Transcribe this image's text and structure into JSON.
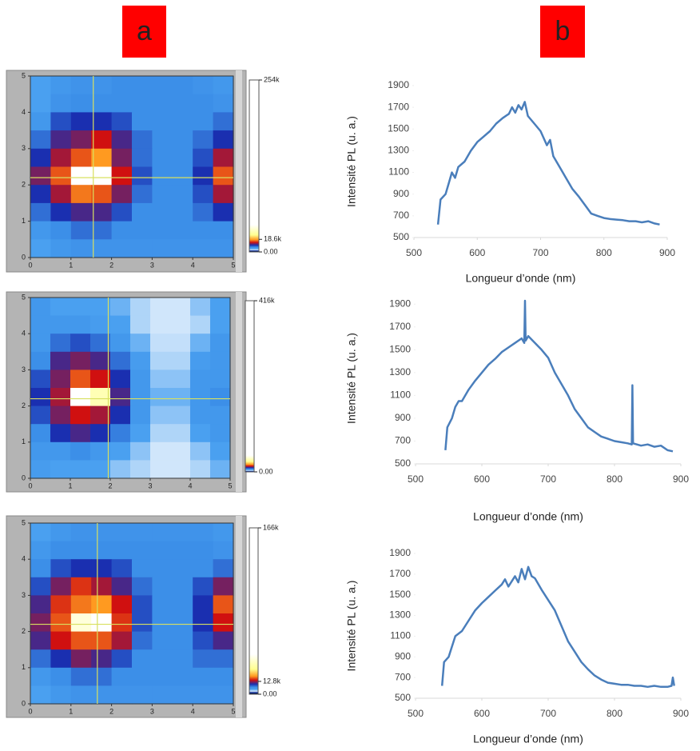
{
  "panel_labels": [
    "a",
    "b"
  ],
  "chart_data": [
    {
      "type": "heatmap",
      "xlim": [
        0,
        5
      ],
      "ylim": [
        0,
        5
      ],
      "xticks": [
        0,
        1,
        2,
        3,
        4,
        5
      ],
      "yticks": [
        0,
        1,
        2,
        3,
        4,
        5
      ],
      "x": [
        0.25,
        0.75,
        1.25,
        1.75,
        2.25,
        2.75,
        3.25,
        3.75,
        4.25,
        4.75
      ],
      "y": [
        4.75,
        4.25,
        3.75,
        3.25,
        2.75,
        2.25,
        1.75,
        1.25,
        0.75,
        0.25
      ],
      "z": [
        [
          5000,
          6000,
          6500,
          6500,
          7000,
          7000,
          7000,
          7000,
          6500,
          6000
        ],
        [
          5000,
          6500,
          7000,
          7000,
          7000,
          7000,
          7000,
          7000,
          7000,
          6500
        ],
        [
          6000,
          9000,
          10000,
          10000,
          9000,
          7000,
          7000,
          7000,
          7000,
          8000
        ],
        [
          8000,
          11000,
          12000,
          14000,
          11000,
          8000,
          7000,
          7000,
          8000,
          10000
        ],
        [
          10000,
          13000,
          16000,
          18000,
          12000,
          8000,
          7000,
          7000,
          9000,
          13000
        ],
        [
          12000,
          16000,
          40000,
          45000,
          14000,
          9000,
          7000,
          7000,
          10000,
          16000
        ],
        [
          10000,
          13000,
          17000,
          16000,
          12000,
          8000,
          7000,
          7000,
          9000,
          13000
        ],
        [
          8000,
          10000,
          11000,
          11000,
          9000,
          7000,
          7000,
          7000,
          8000,
          10000
        ],
        [
          6000,
          7000,
          8000,
          8000,
          7000,
          7000,
          7000,
          7000,
          7000,
          7000
        ],
        [
          5000,
          6000,
          6500,
          6500,
          6500,
          6500,
          6500,
          6500,
          6500,
          6500
        ]
      ],
      "cursor": {
        "x": 1.55,
        "y": 2.2,
        "color": "#d8e060"
      },
      "colorbar": {
        "lim": [
          0,
          254000
        ],
        "ticks": [
          {
            "value": 254000,
            "label": "254k"
          },
          {
            "value": 18600,
            "label": "18.6k"
          },
          {
            "value": 0,
            "label": "0.00"
          }
        ]
      },
      "colormap": [
        {
          "value": 0,
          "color": "#000000"
        },
        {
          "value": 1500,
          "color": "#0a2a9a"
        },
        {
          "value": 3000,
          "color": "#d0e6fb"
        },
        {
          "value": 5000,
          "color": "#4aa0f0"
        },
        {
          "value": 7000,
          "color": "#3c8fe8"
        },
        {
          "value": 10000,
          "color": "#1a2fb0"
        },
        {
          "value": 14000,
          "color": "#d01010"
        },
        {
          "value": 18000,
          "color": "#ff9a20"
        },
        {
          "value": 25000,
          "color": "#ffff90"
        },
        {
          "value": 40000,
          "color": "#ffffff"
        }
      ]
    },
    {
      "type": "heatmap",
      "xlim": [
        0,
        5
      ],
      "ylim": [
        0,
        5
      ],
      "xticks": [
        0,
        1,
        2,
        3,
        4,
        5
      ],
      "yticks": [
        0,
        1,
        2,
        3,
        4,
        5
      ],
      "x": [
        0.25,
        0.75,
        1.25,
        1.75,
        2.25,
        2.75,
        3.25,
        3.75,
        4.25,
        4.75
      ],
      "y": [
        4.75,
        4.25,
        3.75,
        3.25,
        2.75,
        2.25,
        1.75,
        1.25,
        0.75,
        0.25
      ],
      "z": [
        [
          6000,
          5000,
          5000,
          5000,
          4500,
          3500,
          3000,
          3000,
          4000,
          5000
        ],
        [
          6000,
          6000,
          6000,
          5500,
          5000,
          3500,
          3000,
          3000,
          3500,
          5000
        ],
        [
          6000,
          8000,
          9000,
          8000,
          6000,
          4500,
          3200,
          3200,
          4500,
          6000
        ],
        [
          7000,
          11000,
          12000,
          11000,
          8000,
          5500,
          3500,
          3500,
          5500,
          6000
        ],
        [
          9000,
          12000,
          16000,
          14000,
          10000,
          6000,
          4000,
          4000,
          6000,
          6000
        ],
        [
          10000,
          13000,
          42000,
          30000,
          11000,
          6000,
          4500,
          4500,
          6000,
          7000
        ],
        [
          9000,
          12000,
          14000,
          13000,
          10000,
          6000,
          4000,
          4000,
          6000,
          6000
        ],
        [
          7000,
          10000,
          11000,
          10000,
          7500,
          5000,
          3500,
          3500,
          5000,
          6000
        ],
        [
          6000,
          6000,
          7000,
          6000,
          5000,
          4000,
          3000,
          3000,
          4000,
          5000
        ],
        [
          5500,
          5000,
          5000,
          5000,
          4000,
          3500,
          3000,
          3000,
          3500,
          4500
        ]
      ],
      "cursor": {
        "x": 1.95,
        "y": 2.2,
        "color": "#d8e060"
      },
      "colorbar": {
        "lim": [
          0,
          416000
        ],
        "ticks": [
          {
            "value": 416000,
            "label": "416k"
          },
          {
            "value": 0,
            "label": "0.00"
          }
        ]
      },
      "colormap": [
        {
          "value": 0,
          "color": "#000000"
        },
        {
          "value": 1500,
          "color": "#0a2a9a"
        },
        {
          "value": 3000,
          "color": "#d0e6fb"
        },
        {
          "value": 5000,
          "color": "#4aa0f0"
        },
        {
          "value": 7000,
          "color": "#3c8fe8"
        },
        {
          "value": 10000,
          "color": "#1a2fb0"
        },
        {
          "value": 14000,
          "color": "#d01010"
        },
        {
          "value": 18000,
          "color": "#ff9a20"
        },
        {
          "value": 25000,
          "color": "#ffff90"
        },
        {
          "value": 40000,
          "color": "#ffffff"
        }
      ]
    },
    {
      "type": "heatmap",
      "xlim": [
        0,
        5
      ],
      "ylim": [
        0,
        5
      ],
      "xticks": [
        0,
        1,
        2,
        3,
        4,
        5
      ],
      "yticks": [
        0,
        1,
        2,
        3,
        4,
        5
      ],
      "x": [
        0.25,
        0.75,
        1.25,
        1.75,
        2.25,
        2.75,
        3.25,
        3.75,
        4.25,
        4.75
      ],
      "y": [
        4.75,
        4.25,
        3.75,
        3.25,
        2.75,
        2.25,
        1.75,
        1.25,
        0.75,
        0.25
      ],
      "z": [
        [
          5000,
          6000,
          6500,
          6500,
          6500,
          6500,
          6500,
          6500,
          6500,
          6000
        ],
        [
          6000,
          7000,
          7000,
          7000,
          7000,
          7000,
          7000,
          7000,
          7000,
          6500
        ],
        [
          7000,
          9000,
          10000,
          10000,
          9000,
          7000,
          7000,
          7000,
          7000,
          8000
        ],
        [
          9000,
          12000,
          15000,
          13000,
          11000,
          8000,
          7000,
          7000,
          9000,
          12000
        ],
        [
          11000,
          15000,
          17000,
          18000,
          14000,
          9000,
          7000,
          7000,
          10000,
          16000
        ],
        [
          12000,
          16000,
          35000,
          40000,
          15000,
          9000,
          7000,
          7000,
          10000,
          14000
        ],
        [
          11000,
          14000,
          16000,
          16000,
          13000,
          8000,
          7000,
          7000,
          9000,
          11000
        ],
        [
          8000,
          10000,
          12000,
          11000,
          9000,
          7000,
          7000,
          7000,
          8000,
          8000
        ],
        [
          6000,
          7000,
          8000,
          8000,
          7000,
          7000,
          7000,
          7000,
          7000,
          7000
        ],
        [
          5000,
          6000,
          6500,
          6500,
          6500,
          6500,
          6500,
          6500,
          6500,
          6500
        ]
      ],
      "cursor": {
        "x": 1.65,
        "y": 2.2,
        "color": "#d8e060"
      },
      "colorbar": {
        "lim": [
          0,
          166000
        ],
        "ticks": [
          {
            "value": 166000,
            "label": "166k"
          },
          {
            "value": 12800,
            "label": "12.8k"
          },
          {
            "value": 0,
            "label": "0.00"
          }
        ]
      },
      "colormap": [
        {
          "value": 0,
          "color": "#000000"
        },
        {
          "value": 1500,
          "color": "#0a2a9a"
        },
        {
          "value": 3000,
          "color": "#d0e6fb"
        },
        {
          "value": 5000,
          "color": "#4aa0f0"
        },
        {
          "value": 7000,
          "color": "#3c8fe8"
        },
        {
          "value": 10000,
          "color": "#1a2fb0"
        },
        {
          "value": 14000,
          "color": "#d01010"
        },
        {
          "value": 18000,
          "color": "#ff9a20"
        },
        {
          "value": 25000,
          "color": "#ffff90"
        },
        {
          "value": 40000,
          "color": "#ffffff"
        }
      ]
    },
    {
      "type": "line",
      "x_label": "Longueur d’onde (nm)",
      "y_label": "Intensité PL (u. a.)",
      "color": "#4a7ebb",
      "xlim": [
        500,
        900
      ],
      "ylim": [
        500,
        1900
      ],
      "xticks": [
        500,
        600,
        700,
        800,
        900
      ],
      "yticks": [
        500,
        700,
        900,
        1100,
        1300,
        1500,
        1700,
        1900
      ],
      "x": [
        538,
        542,
        550,
        555,
        560,
        565,
        570,
        580,
        590,
        600,
        610,
        620,
        630,
        640,
        650,
        655,
        660,
        665,
        670,
        675,
        680,
        690,
        700,
        710,
        715,
        720,
        730,
        740,
        750,
        760,
        770,
        780,
        790,
        800,
        810,
        820,
        830,
        840,
        850,
        860,
        870,
        880,
        888
      ],
      "values": [
        620,
        850,
        900,
        1000,
        1100,
        1050,
        1150,
        1200,
        1300,
        1380,
        1430,
        1480,
        1550,
        1600,
        1640,
        1700,
        1650,
        1720,
        1680,
        1750,
        1620,
        1550,
        1480,
        1350,
        1400,
        1250,
        1150,
        1050,
        950,
        880,
        800,
        720,
        700,
        680,
        670,
        665,
        660,
        650,
        650,
        640,
        650,
        630,
        620
      ]
    },
    {
      "type": "line",
      "x_label": "Longueur d’onde (nm)",
      "y_label": "Intensité PL (u. a.)",
      "color": "#4a7ebb",
      "xlim": [
        500,
        900
      ],
      "ylim": [
        500,
        2000
      ],
      "xticks": [
        500,
        600,
        700,
        800,
        900
      ],
      "yticks": [
        500,
        700,
        900,
        1100,
        1300,
        1500,
        1700,
        1900
      ],
      "x": [
        545,
        548,
        555,
        560,
        565,
        570,
        580,
        590,
        600,
        610,
        620,
        630,
        640,
        650,
        660,
        664,
        665,
        666,
        670,
        680,
        690,
        700,
        710,
        720,
        730,
        740,
        750,
        760,
        770,
        780,
        790,
        800,
        810,
        820,
        826,
        827,
        828,
        840,
        850,
        860,
        870,
        880,
        888
      ],
      "values": [
        620,
        820,
        900,
        1000,
        1050,
        1050,
        1150,
        1230,
        1300,
        1370,
        1420,
        1480,
        1520,
        1560,
        1600,
        1560,
        1930,
        1580,
        1620,
        1560,
        1500,
        1430,
        1300,
        1200,
        1100,
        980,
        900,
        820,
        780,
        740,
        720,
        700,
        690,
        680,
        670,
        1190,
        680,
        660,
        670,
        650,
        660,
        620,
        610
      ]
    },
    {
      "type": "line",
      "x_label": "Longueur d’onde (nm)",
      "y_label": "Intensité PL (u. a.)",
      "color": "#4a7ebb",
      "xlim": [
        500,
        900
      ],
      "ylim": [
        500,
        1900
      ],
      "xticks": [
        500,
        600,
        700,
        800,
        900
      ],
      "yticks": [
        500,
        700,
        900,
        1100,
        1300,
        1500,
        1700,
        1900
      ],
      "x": [
        540,
        543,
        550,
        555,
        560,
        570,
        580,
        590,
        600,
        610,
        620,
        630,
        635,
        640,
        650,
        655,
        660,
        665,
        670,
        675,
        680,
        690,
        700,
        710,
        720,
        730,
        740,
        750,
        760,
        770,
        780,
        790,
        800,
        810,
        820,
        830,
        840,
        850,
        860,
        870,
        880,
        886,
        888,
        890
      ],
      "values": [
        620,
        850,
        900,
        1000,
        1100,
        1150,
        1250,
        1350,
        1420,
        1480,
        1540,
        1600,
        1650,
        1580,
        1680,
        1620,
        1750,
        1650,
        1770,
        1680,
        1660,
        1550,
        1450,
        1350,
        1200,
        1050,
        950,
        850,
        780,
        720,
        680,
        650,
        640,
        630,
        630,
        620,
        620,
        610,
        620,
        610,
        610,
        620,
        700,
        620
      ]
    }
  ]
}
